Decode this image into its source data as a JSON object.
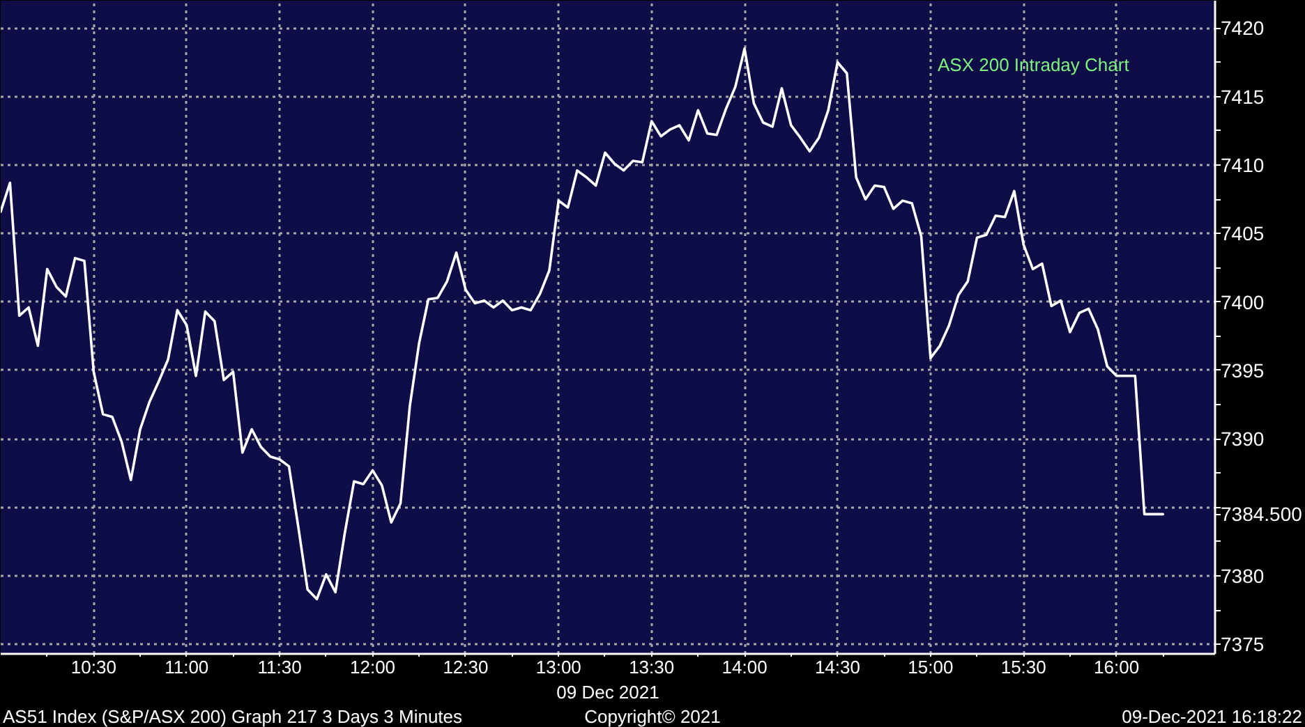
{
  "chart_data": {
    "type": "line",
    "title": "ASX 200 Intraday Chart",
    "xlabel": "09 Dec 2021",
    "x": [
      10,
      10.05,
      10.1,
      10.15,
      10.2,
      10.25,
      10.3,
      10.35,
      10.4,
      10.45,
      10.5,
      10.55,
      10.6,
      10.65,
      10.7,
      10.75,
      10.8,
      10.85,
      10.9,
      10.95,
      11,
      11.05,
      11.1,
      11.15,
      11.2,
      11.25,
      11.3,
      11.35,
      11.4,
      11.45,
      11.5,
      11.55,
      11.6,
      11.65,
      11.7,
      11.75,
      11.8,
      11.85,
      11.9,
      11.95,
      12,
      12.05,
      12.1,
      12.15,
      12.2,
      12.25,
      12.3,
      12.35,
      12.4,
      12.45,
      12.5,
      12.55,
      12.6,
      12.65,
      12.7,
      12.75,
      12.8,
      12.85,
      12.9,
      12.95,
      13,
      13.05,
      13.1,
      13.15,
      13.2,
      13.25,
      13.3,
      13.35,
      13.4,
      13.45,
      13.5,
      13.55,
      13.6,
      13.65,
      13.7,
      13.75,
      13.8,
      13.85,
      13.9,
      13.95,
      14,
      14.05,
      14.1,
      14.15,
      14.2,
      14.25,
      14.3,
      14.35,
      14.4,
      14.45,
      14.5,
      14.55,
      14.6,
      14.65,
      14.7,
      14.75,
      14.8,
      14.85,
      14.9,
      14.95,
      15,
      15.05,
      15.1,
      15.15,
      15.2,
      15.25,
      15.3,
      15.35,
      15.4,
      15.45,
      15.5,
      15.55,
      15.6,
      15.65,
      15.7,
      15.75,
      15.8,
      15.85,
      15.9,
      15.95,
      16,
      16.05,
      16.1,
      16.15,
      16.2,
      16.25
    ],
    "series": [
      {
        "color": "#ffffff",
        "values": [
          7406.6,
          7408.7,
          7399.0,
          7399.6,
          7396.8,
          7402.4,
          7401.1,
          7400.4,
          7403.2,
          7403.0,
          7394.9,
          7391.8,
          7391.6,
          7389.8,
          7387.0,
          7390.7,
          7392.7,
          7394.2,
          7395.8,
          7399.4,
          7398.3,
          7394.6,
          7399.3,
          7398.6,
          7394.3,
          7394.9,
          7389.0,
          7390.7,
          7389.4,
          7388.7,
          7388.5,
          7388.0,
          7383.6,
          7379.0,
          7378.3,
          7380.1,
          7378.8,
          7383.1,
          7386.9,
          7386.7,
          7387.7,
          7386.6,
          7383.9,
          7385.3,
          7392.4,
          7397.0,
          7400.2,
          7400.3,
          7401.5,
          7403.6,
          7400.9,
          7399.9,
          7400.1,
          7399.6,
          7400.1,
          7399.4,
          7399.6,
          7399.4,
          7400.6,
          7402.3,
          7407.4,
          7406.9,
          7409.6,
          7409.1,
          7408.5,
          7410.9,
          7410.1,
          7409.6,
          7410.3,
          7410.2,
          7413.2,
          7412.1,
          7412.6,
          7412.9,
          7411.8,
          7414.0,
          7412.3,
          7412.2,
          7414.1,
          7415.7,
          7418.5,
          7414.5,
          7413.1,
          7412.8,
          7415.6,
          7412.9,
          7412.0,
          7411.0,
          7412.0,
          7414.0,
          7417.5,
          7416.7,
          7409.1,
          7407.5,
          7408.5,
          7408.4,
          7406.8,
          7407.4,
          7407.2,
          7404.8,
          7395.9,
          7396.8,
          7398.3,
          7400.5,
          7401.5,
          7404.7,
          7404.9,
          7406.3,
          7406.2,
          7408.1,
          7404.2,
          7402.4,
          7402.8,
          7399.7,
          7400.1,
          7397.8,
          7399.2,
          7399.5,
          7398.0,
          7395.3,
          7394.6,
          7394.6,
          7394.6,
          7384.5,
          7384.5,
          7384.5
        ]
      }
    ],
    "xlim": [
      10,
      16.53
    ],
    "ylim": [
      7374.3,
      7422
    ],
    "xticks": [
      {
        "value": 10.25,
        "label": null
      },
      {
        "value": 10.5,
        "label": "10:30"
      },
      {
        "value": 10.75,
        "label": null
      },
      {
        "value": 11,
        "label": "11:00"
      },
      {
        "value": 11.25,
        "label": null
      },
      {
        "value": 11.5,
        "label": "11:30"
      },
      {
        "value": 11.75,
        "label": null
      },
      {
        "value": 12,
        "label": "12:00"
      },
      {
        "value": 12.25,
        "label": null
      },
      {
        "value": 12.5,
        "label": "12:30"
      },
      {
        "value": 12.75,
        "label": null
      },
      {
        "value": 13,
        "label": "13:00"
      },
      {
        "value": 13.25,
        "label": null
      },
      {
        "value": 13.5,
        "label": "13:30"
      },
      {
        "value": 13.75,
        "label": null
      },
      {
        "value": 14,
        "label": "14:00"
      },
      {
        "value": 14.25,
        "label": null
      },
      {
        "value": 14.5,
        "label": "14:30"
      },
      {
        "value": 14.75,
        "label": null
      },
      {
        "value": 15,
        "label": "15:00"
      },
      {
        "value": 15.25,
        "label": null
      },
      {
        "value": 15.5,
        "label": "15:30"
      },
      {
        "value": 15.75,
        "label": null
      },
      {
        "value": 16,
        "label": "16:00"
      },
      {
        "value": 16.25,
        "label": null
      }
    ],
    "yticks": [
      7375,
      {
        "value": 7377.5,
        "label": null
      },
      7380,
      {
        "value": 7382.5,
        "label": null
      },
      {
        "value": 7384.5,
        "label": "7384.500"
      },
      {
        "value": 7385,
        "label": null
      },
      {
        "value": 7387.5,
        "label": null
      },
      7390,
      {
        "value": 7392.5,
        "label": null
      },
      7395,
      {
        "value": 7397.5,
        "label": null
      },
      7400,
      {
        "value": 7402.5,
        "label": null
      },
      7405,
      {
        "value": 7407.5,
        "label": null
      },
      7410,
      {
        "value": 7412.5,
        "label": null
      },
      7415,
      {
        "value": 7417.5,
        "label": null
      },
      7420
    ],
    "grid": true,
    "line_style": "solid",
    "annotations": [
      "AS51 Index (S&P/ASX 200) Graph 217 3 Days 3 Minutes",
      "Copyright© 2021",
      "09-Dec-2021 16:18:22"
    ]
  }
}
